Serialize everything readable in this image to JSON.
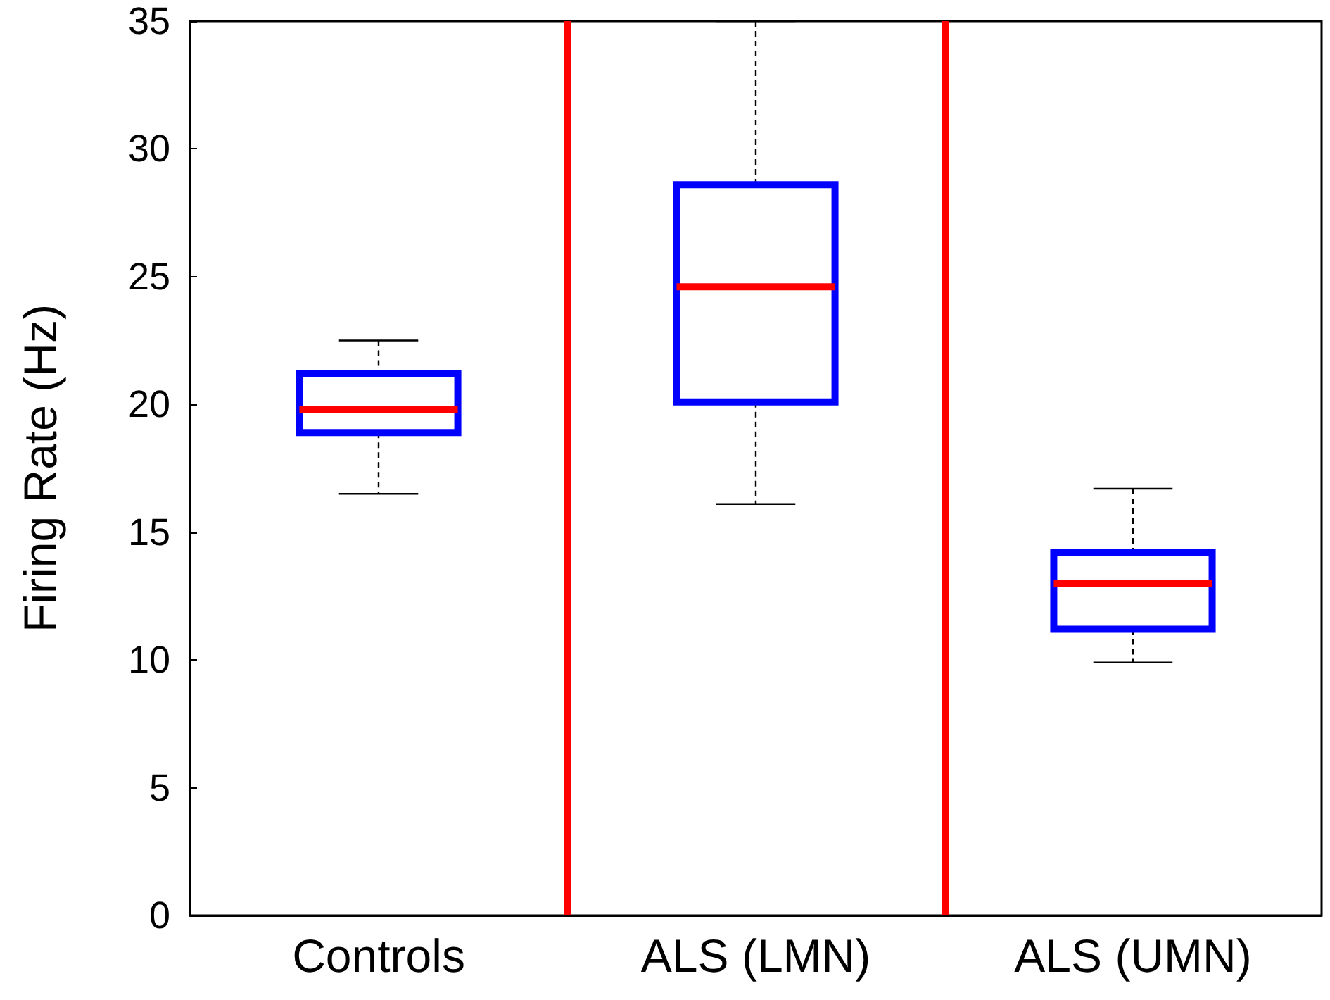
{
  "chart_data": {
    "type": "box",
    "ylabel": "Firing Rate (Hz)",
    "categories": [
      "Controls",
      "ALS (LMN)",
      "ALS (UMN)"
    ],
    "series": [
      {
        "color": "#0000ff",
        "boxes": [
          {
            "low": 16.5,
            "q1": 18.9,
            "median": 19.8,
            "q3": 21.2,
            "high": 22.5
          },
          {
            "low": 16.1,
            "q1": 20.1,
            "median": 24.6,
            "q3": 28.6,
            "high": 35
          },
          {
            "low": 9.9,
            "q1": 11.2,
            "median": 13.0,
            "q3": 14.2,
            "high": 16.7
          }
        ]
      }
    ],
    "ylim": [
      0,
      35
    ],
    "yticks": [
      0,
      5,
      10,
      15,
      20,
      25,
      30,
      35
    ],
    "grid": false
  }
}
